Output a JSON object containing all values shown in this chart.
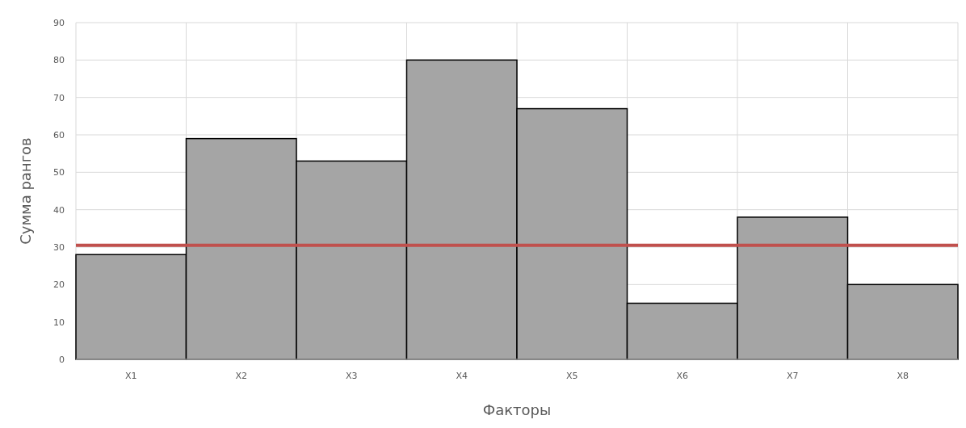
{
  "chart_data": {
    "type": "bar",
    "xlabel": "Факторы",
    "ylabel": "Сумма рангов",
    "categories": [
      "X1",
      "X2",
      "X3",
      "X4",
      "X5",
      "X6",
      "X7",
      "X8"
    ],
    "values": [
      28,
      59,
      53,
      80,
      67,
      15,
      38,
      20
    ],
    "color": "#a5a5a5",
    "ylim": [
      0,
      90
    ],
    "yticks": [
      0,
      10,
      20,
      30,
      40,
      50,
      60,
      70,
      80,
      90
    ],
    "grid": true,
    "ref_lines": [
      {
        "axis": "y",
        "value": 30.5,
        "color": "#c0504d"
      }
    ]
  }
}
